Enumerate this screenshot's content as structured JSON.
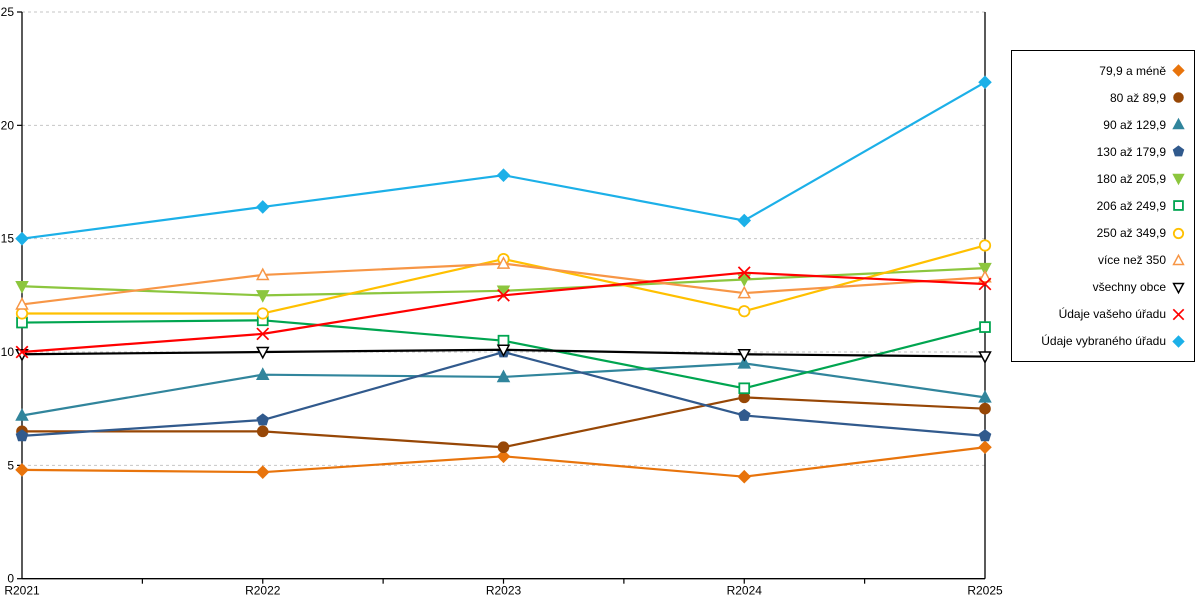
{
  "chart_data": {
    "type": "line",
    "title": "",
    "xlabel": "",
    "ylabel": "",
    "categories": [
      "R2021",
      "R2022",
      "R2023",
      "R2024",
      "R2025"
    ],
    "ylim": [
      0,
      25
    ],
    "yticks": [
      0,
      5,
      10,
      15,
      20,
      25
    ],
    "grid": "horizontal-dashed",
    "legend_position": "right",
    "series": [
      {
        "name": "79,9 a méně",
        "marker": "diamond",
        "fill": "filled",
        "color": "#E8740C",
        "values": [
          4.8,
          4.7,
          5.4,
          4.5,
          5.8
        ]
      },
      {
        "name": "80 až 89,9",
        "marker": "circle",
        "fill": "filled",
        "color": "#974706",
        "values": [
          6.5,
          6.5,
          5.8,
          8.0,
          7.5
        ]
      },
      {
        "name": "90 až 129,9",
        "marker": "triangle-up",
        "fill": "filled",
        "color": "#31859C",
        "values": [
          7.2,
          9.0,
          8.9,
          9.5,
          8.0
        ]
      },
      {
        "name": "130 až 179,9",
        "marker": "pentagon",
        "fill": "filled",
        "color": "#315A8D",
        "values": [
          6.3,
          7.0,
          10.0,
          7.2,
          6.3
        ]
      },
      {
        "name": "180 až 205,9",
        "marker": "triangle-down",
        "fill": "filled",
        "color": "#8CC63E",
        "values": [
          12.9,
          12.5,
          12.7,
          13.2,
          13.7
        ]
      },
      {
        "name": "206 až 249,9",
        "marker": "square",
        "fill": "open",
        "color": "#00A550",
        "values": [
          11.3,
          11.4,
          10.5,
          8.4,
          11.1
        ]
      },
      {
        "name": "250 až 349,9",
        "marker": "circle",
        "fill": "open",
        "color": "#FFC000",
        "values": [
          11.7,
          11.7,
          14.1,
          11.8,
          14.7
        ]
      },
      {
        "name": "více než 350",
        "marker": "triangle-up",
        "fill": "open",
        "color": "#F79646",
        "values": [
          12.1,
          13.4,
          13.9,
          12.6,
          13.3
        ]
      },
      {
        "name": "všechny obce",
        "marker": "triangle-down",
        "fill": "open",
        "color": "#000000",
        "values": [
          9.9,
          10.0,
          10.1,
          9.9,
          9.8
        ]
      },
      {
        "name": "Údaje vašeho úřadu",
        "marker": "x",
        "fill": "open",
        "color": "#FF0000",
        "values": [
          10.0,
          10.8,
          12.5,
          13.5,
          13.0
        ]
      },
      {
        "name": "Údaje vybraného úřadu",
        "marker": "diamond",
        "fill": "filled",
        "color": "#1CB0E8",
        "values": [
          15.0,
          16.4,
          17.8,
          15.8,
          21.9
        ]
      }
    ]
  },
  "style": {
    "grid_color": "#C6C6C6",
    "axis_color": "#000000",
    "background": "#FFFFFF",
    "legend_border": "#000000"
  }
}
